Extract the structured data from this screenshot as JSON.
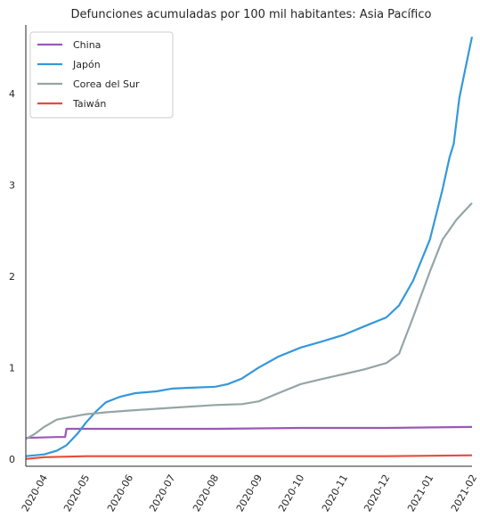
{
  "chart_data": {
    "type": "line",
    "title": "Defunciones acumuladas por 100 mil habitantes: Asia Pacífico",
    "xlabel": "",
    "ylabel": "",
    "x_range": [
      "2020-03-19",
      "2021-01-31"
    ],
    "ylim": [
      -0.08,
      4.75
    ],
    "grid": false,
    "legend_position": "top-left",
    "x_ticks": [
      "2020-04",
      "2020-05",
      "2020-06",
      "2020-07",
      "2020-08",
      "2020-09",
      "2020-10",
      "2020-11",
      "2020-12",
      "2021-01",
      "2021-02"
    ],
    "y_ticks": [
      0,
      1,
      2,
      3,
      4
    ],
    "series": [
      {
        "name": "China",
        "color": "#9b59b6",
        "points": [
          [
            "2020-03-19",
            0.23
          ],
          [
            "2020-04-10",
            0.24
          ],
          [
            "2020-04-16",
            0.24
          ],
          [
            "2020-04-17",
            0.33
          ],
          [
            "2020-06-01",
            0.33
          ],
          [
            "2020-08-01",
            0.33
          ],
          [
            "2020-10-01",
            0.34
          ],
          [
            "2020-12-01",
            0.34
          ],
          [
            "2021-01-31",
            0.35
          ]
        ]
      },
      {
        "name": "Japón",
        "color": "#3498db",
        "points": [
          [
            "2020-03-19",
            0.03
          ],
          [
            "2020-04-01",
            0.05
          ],
          [
            "2020-04-10",
            0.09
          ],
          [
            "2020-04-17",
            0.15
          ],
          [
            "2020-04-25",
            0.28
          ],
          [
            "2020-05-01",
            0.4
          ],
          [
            "2020-05-08",
            0.52
          ],
          [
            "2020-05-15",
            0.62
          ],
          [
            "2020-05-25",
            0.68
          ],
          [
            "2020-06-05",
            0.72
          ],
          [
            "2020-06-20",
            0.74
          ],
          [
            "2020-07-01",
            0.77
          ],
          [
            "2020-07-15",
            0.78
          ],
          [
            "2020-08-01",
            0.79
          ],
          [
            "2020-08-10",
            0.82
          ],
          [
            "2020-08-20",
            0.88
          ],
          [
            "2020-09-01",
            1.0
          ],
          [
            "2020-09-15",
            1.12
          ],
          [
            "2020-10-01",
            1.22
          ],
          [
            "2020-10-15",
            1.28
          ],
          [
            "2020-11-01",
            1.36
          ],
          [
            "2020-11-15",
            1.45
          ],
          [
            "2020-12-01",
            1.55
          ],
          [
            "2020-12-10",
            1.68
          ],
          [
            "2020-12-20",
            1.95
          ],
          [
            "2021-01-01",
            2.4
          ],
          [
            "2021-01-10",
            2.95
          ],
          [
            "2021-01-15",
            3.3
          ],
          [
            "2021-01-18",
            3.45
          ],
          [
            "2021-01-22",
            3.95
          ],
          [
            "2021-01-26",
            4.25
          ],
          [
            "2021-01-31",
            4.62
          ]
        ]
      },
      {
        "name": "Corea del Sur",
        "color": "#95a5a6",
        "points": [
          [
            "2020-03-19",
            0.22
          ],
          [
            "2020-03-25",
            0.27
          ],
          [
            "2020-04-01",
            0.35
          ],
          [
            "2020-04-10",
            0.43
          ],
          [
            "2020-04-20",
            0.46
          ],
          [
            "2020-05-01",
            0.49
          ],
          [
            "2020-05-15",
            0.51
          ],
          [
            "2020-06-01",
            0.53
          ],
          [
            "2020-07-01",
            0.56
          ],
          [
            "2020-08-01",
            0.59
          ],
          [
            "2020-08-20",
            0.6
          ],
          [
            "2020-09-01",
            0.63
          ],
          [
            "2020-09-15",
            0.72
          ],
          [
            "2020-10-01",
            0.82
          ],
          [
            "2020-10-15",
            0.87
          ],
          [
            "2020-11-01",
            0.93
          ],
          [
            "2020-11-15",
            0.98
          ],
          [
            "2020-12-01",
            1.05
          ],
          [
            "2020-12-10",
            1.15
          ],
          [
            "2020-12-20",
            1.55
          ],
          [
            "2021-01-01",
            2.05
          ],
          [
            "2021-01-10",
            2.4
          ],
          [
            "2021-01-20",
            2.62
          ],
          [
            "2021-01-31",
            2.8
          ]
        ]
      },
      {
        "name": "Taiwán",
        "color": "#e74c3c",
        "points": [
          [
            "2020-03-19",
            0.0
          ],
          [
            "2020-04-01",
            0.02
          ],
          [
            "2020-05-01",
            0.03
          ],
          [
            "2020-06-01",
            0.03
          ],
          [
            "2020-09-01",
            0.03
          ],
          [
            "2020-12-01",
            0.03
          ],
          [
            "2021-01-31",
            0.04
          ]
        ]
      }
    ]
  }
}
